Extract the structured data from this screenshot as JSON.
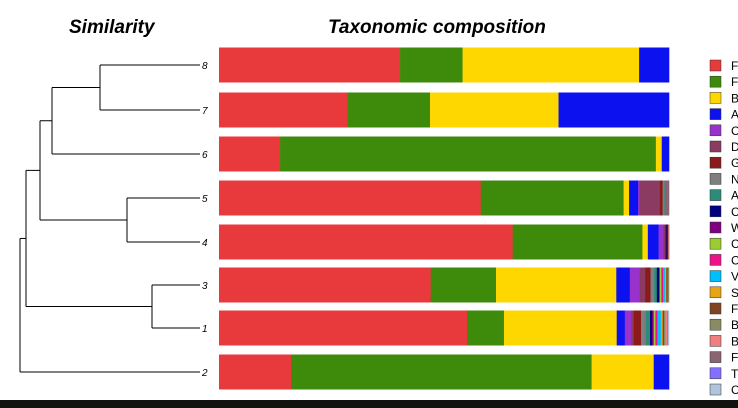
{
  "chart_data": [
    {
      "type": "dendrogram",
      "title": "Similarity",
      "leaf_order": [
        "8",
        "7",
        "6",
        "5",
        "4",
        "3",
        "1",
        "2"
      ]
    },
    {
      "type": "bar",
      "orientation": "horizontal",
      "stacked": true,
      "normalized": true,
      "title": "Taxonomic composition",
      "categories": [
        "8",
        "7",
        "6",
        "5",
        "4",
        "3",
        "1",
        "2"
      ],
      "xlim": [
        0,
        1
      ],
      "legend_placement": "right",
      "series": [
        {
          "name": "F",
          "color": "#e8393c",
          "values": [
            0.4,
            0.285,
            0.135,
            0.577,
            0.652,
            0.47,
            0.55,
            0.16
          ]
        },
        {
          "name": "F",
          "color": "#3e8b0b",
          "values": [
            0.138,
            0.183,
            0.83,
            0.315,
            0.288,
            0.145,
            0.082,
            0.668
          ]
        },
        {
          "name": "B",
          "color": "#ffd700",
          "values": [
            0.39,
            0.285,
            0.013,
            0.012,
            0.012,
            0.267,
            0.25,
            0.138
          ]
        },
        {
          "name": "A",
          "color": "#0c12ef",
          "values": [
            0.066,
            0.245,
            0.016,
            0.02,
            0.024,
            0.03,
            0.018,
            0.034
          ]
        },
        {
          "name": "C",
          "color": "#9932cc",
          "values": [
            0,
            0,
            0,
            0.003,
            0.01,
            0.022,
            0.014,
            0
          ]
        },
        {
          "name": "D",
          "color": "#8b3a62",
          "values": [
            0,
            0,
            0,
            0.045,
            0.004,
            0.012,
            0.006,
            0
          ]
        },
        {
          "name": "G",
          "color": "#8b1a1a",
          "values": [
            0,
            0,
            0,
            0.006,
            0.003,
            0.012,
            0.016,
            0
          ]
        },
        {
          "name": "N",
          "color": "#7f7f7f",
          "values": [
            0,
            0,
            0,
            0.004,
            0,
            0.008,
            0.01,
            0
          ]
        },
        {
          "name": "A",
          "color": "#2e8b7a",
          "values": [
            0,
            0,
            0,
            0.002,
            0,
            0.006,
            0.01,
            0
          ]
        },
        {
          "name": "C",
          "color": "#000080",
          "values": [
            0,
            0,
            0,
            0,
            0.002,
            0.006,
            0.004,
            0
          ]
        },
        {
          "name": "W",
          "color": "#800080",
          "values": [
            0,
            0,
            0,
            0,
            0.002,
            0,
            0.004,
            0
          ]
        },
        {
          "name": "C",
          "color": "#9acd32",
          "values": [
            0,
            0,
            0,
            0,
            0.001,
            0.004,
            0.004,
            0
          ]
        },
        {
          "name": "C",
          "color": "#ee1289",
          "values": [
            0,
            0,
            0,
            0,
            0.001,
            0.004,
            0.004,
            0
          ]
        },
        {
          "name": "V",
          "color": "#00bfff",
          "values": [
            0,
            0,
            0,
            0,
            0,
            0.004,
            0.008,
            0
          ]
        },
        {
          "name": "S",
          "color": "#e8a317",
          "values": [
            0,
            0,
            0,
            0,
            0,
            0.003,
            0.004,
            0
          ]
        },
        {
          "name": "F",
          "color": "#7f4520",
          "values": [
            0,
            0,
            0,
            0,
            0,
            0.003,
            0.003,
            0
          ]
        },
        {
          "name": "B",
          "color": "#8b8b63",
          "values": [
            0,
            0,
            0,
            0,
            0,
            0.003,
            0.003,
            0
          ]
        },
        {
          "name": "B",
          "color": "#f08080",
          "values": [
            0,
            0,
            0,
            0,
            0,
            0,
            0.004,
            0
          ]
        },
        {
          "name": "F",
          "color": "#8b6473",
          "values": [
            0,
            0,
            0,
            0.008,
            0,
            0,
            0,
            0
          ]
        },
        {
          "name": "T",
          "color": "#8470ff",
          "values": [
            0,
            0,
            0,
            0,
            0,
            0,
            0.002,
            0
          ]
        },
        {
          "name": "C",
          "color": "#b0c4de",
          "values": [
            0,
            0,
            0,
            0,
            0,
            0,
            0.002,
            0
          ]
        }
      ]
    }
  ]
}
